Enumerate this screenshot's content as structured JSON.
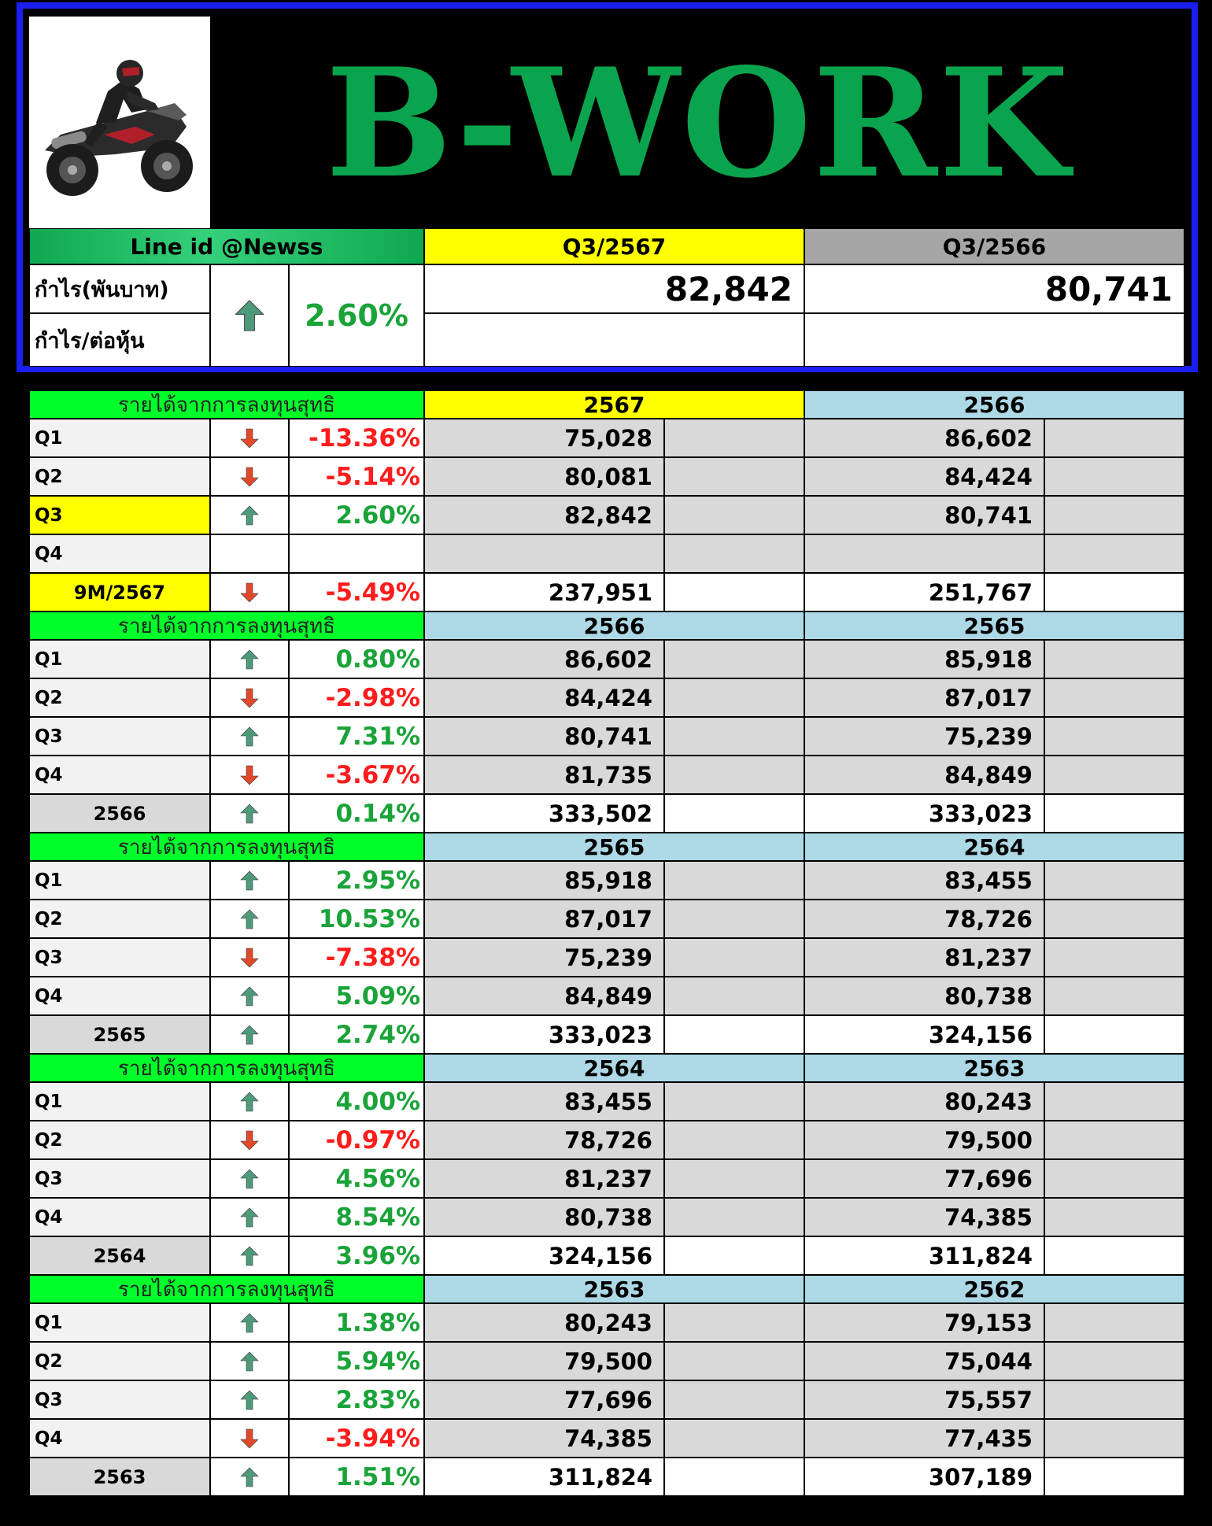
{
  "title": "B-WORK",
  "line_id": "Line id @Newss",
  "summary": {
    "period_current": "Q3/2567",
    "period_previous": "Q3/2566",
    "profit_label": "กำไร(พันบาท)",
    "eps_label": "กำไร/ต่อหุ้น",
    "change": "2.60%",
    "direction": "up",
    "profit_current": "82,842",
    "profit_previous": "80,741"
  },
  "section_label": "รายได้จากการลงทุนสุทธิ",
  "sections": [
    {
      "year_current": "2567",
      "year_previous": "2566",
      "rows": [
        {
          "label": "Q1",
          "direction": "down",
          "change": "-13.36%",
          "current": "75,028",
          "previous": "86,602"
        },
        {
          "label": "Q2",
          "direction": "down",
          "change": "-5.14%",
          "current": "80,081",
          "previous": "84,424"
        },
        {
          "label": "Q3",
          "direction": "up",
          "change": "2.60%",
          "current": "82,842",
          "previous": "80,741",
          "highlight": true
        },
        {
          "label": "Q4",
          "direction": "",
          "change": "",
          "current": "",
          "previous": ""
        }
      ],
      "total": {
        "label": "9M/2567",
        "direction": "down",
        "change": "-5.49%",
        "current": "237,951",
        "previous": "251,767",
        "highlight": true
      }
    },
    {
      "year_current": "2566",
      "year_previous": "2565",
      "rows": [
        {
          "label": "Q1",
          "direction": "up",
          "change": "0.80%",
          "current": "86,602",
          "previous": "85,918"
        },
        {
          "label": "Q2",
          "direction": "down",
          "change": "-2.98%",
          "current": "84,424",
          "previous": "87,017"
        },
        {
          "label": "Q3",
          "direction": "up",
          "change": "7.31%",
          "current": "80,741",
          "previous": "75,239"
        },
        {
          "label": "Q4",
          "direction": "down",
          "change": "-3.67%",
          "current": "81,735",
          "previous": "84,849"
        }
      ],
      "total": {
        "label": "2566",
        "direction": "up",
        "change": "0.14%",
        "current": "333,502",
        "previous": "333,023"
      }
    },
    {
      "year_current": "2565",
      "year_previous": "2564",
      "rows": [
        {
          "label": "Q1",
          "direction": "up",
          "change": "2.95%",
          "current": "85,918",
          "previous": "83,455"
        },
        {
          "label": "Q2",
          "direction": "up",
          "change": "10.53%",
          "current": "87,017",
          "previous": "78,726"
        },
        {
          "label": "Q3",
          "direction": "down",
          "change": "-7.38%",
          "current": "75,239",
          "previous": "81,237"
        },
        {
          "label": "Q4",
          "direction": "up",
          "change": "5.09%",
          "current": "84,849",
          "previous": "80,738"
        }
      ],
      "total": {
        "label": "2565",
        "direction": "up",
        "change": "2.74%",
        "current": "333,023",
        "previous": "324,156"
      }
    },
    {
      "year_current": "2564",
      "year_previous": "2563",
      "rows": [
        {
          "label": "Q1",
          "direction": "up",
          "change": "4.00%",
          "current": "83,455",
          "previous": "80,243"
        },
        {
          "label": "Q2",
          "direction": "down",
          "change": "-0.97%",
          "current": "78,726",
          "previous": "79,500"
        },
        {
          "label": "Q3",
          "direction": "up",
          "change": "4.56%",
          "current": "81,237",
          "previous": "77,696"
        },
        {
          "label": "Q4",
          "direction": "up",
          "change": "8.54%",
          "current": "80,738",
          "previous": "74,385"
        }
      ],
      "total": {
        "label": "2564",
        "direction": "up",
        "change": "3.96%",
        "current": "324,156",
        "previous": "311,824"
      }
    },
    {
      "year_current": "2563",
      "year_previous": "2562",
      "rows": [
        {
          "label": "Q1",
          "direction": "up",
          "change": "1.38%",
          "current": "80,243",
          "previous": "79,153"
        },
        {
          "label": "Q2",
          "direction": "up",
          "change": "5.94%",
          "current": "79,500",
          "previous": "75,044"
        },
        {
          "label": "Q3",
          "direction": "up",
          "change": "2.83%",
          "current": "77,696",
          "previous": "75,557"
        },
        {
          "label": "Q4",
          "direction": "down",
          "change": "-3.94%",
          "current": "74,385",
          "previous": "77,435"
        }
      ],
      "total": {
        "label": "2563",
        "direction": "up",
        "change": "1.51%",
        "current": "311,824",
        "previous": "307,189"
      }
    }
  ],
  "colors": {
    "title_green": "#0aa44e",
    "border_blue": "#1a1ef0",
    "header_yellow": "#ffff00",
    "header_blue": "#add8e6",
    "section_green": "#00ff2a",
    "positive": "#1aa339",
    "negative": "#ff1c1c",
    "arrow_up": "#4f9a7a",
    "arrow_down": "#e2492b"
  }
}
